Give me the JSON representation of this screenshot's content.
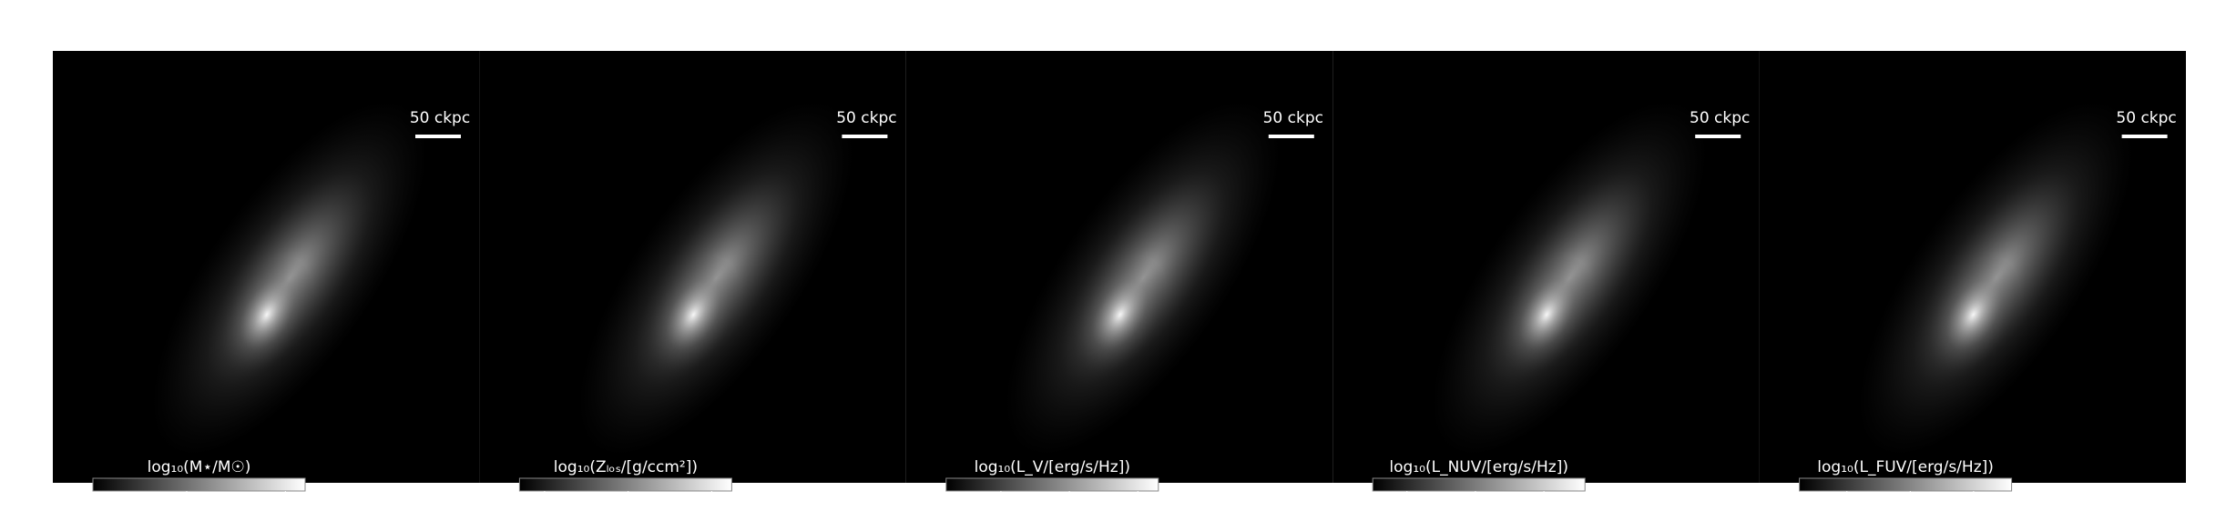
{
  "chart_data": [
    {
      "type": "image",
      "scale_bar_label": "50 ckpc",
      "colorbar_label": "log₁₀(M⋆/M☉)",
      "clim": [
        6.1,
        10.4
      ],
      "cticks": [
        8,
        10
      ]
    },
    {
      "type": "image",
      "scale_bar_label": "50 ckpc",
      "colorbar_label": "log₁₀(Zₗₒₛ/[g/ccm²])",
      "clim": [
        -11.5,
        1.2
      ],
      "cticks": [
        -10,
        -5,
        0
      ]
    },
    {
      "type": "image",
      "scale_bar_label": "50 ckpc",
      "colorbar_label": "log₁₀(L_V/[erg/s/Hz])",
      "clim": [
        25.2,
        28.3
      ],
      "cticks": [
        26,
        27,
        28
      ]
    },
    {
      "type": "image",
      "scale_bar_label": "50 ckpc",
      "colorbar_label": "log₁₀(L_NUV/[erg/s/Hz])",
      "clim": [
        24.5,
        27.6
      ],
      "cticks": [
        25,
        26,
        27
      ]
    },
    {
      "type": "image",
      "scale_bar_label": "50 ckpc",
      "colorbar_label": "log₁₀(L_FUV/[erg/s/Hz])",
      "clim": [
        24.25,
        27.6
      ],
      "cticks": [
        25,
        26,
        27
      ]
    }
  ]
}
